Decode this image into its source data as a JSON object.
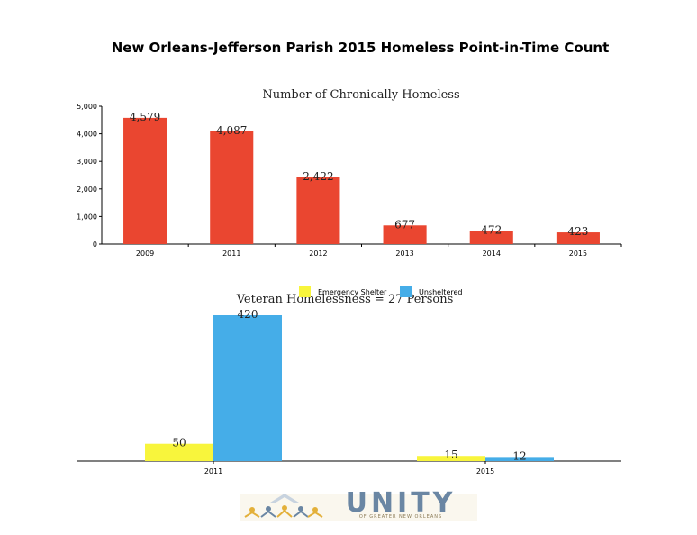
{
  "page": {
    "title": "New Orleans-Jefferson Parish 2015 Homeless Point-in-Time Count"
  },
  "colors": {
    "chronic_bar": "#ea4630",
    "emergency_shelter": "#f8f53c",
    "unsheltered": "#45ade8",
    "axis": "#000000"
  },
  "logo": {
    "word": "UNITY",
    "tagline": "OF GREATER NEW ORLEANS"
  },
  "chart_data": [
    {
      "type": "bar",
      "title": "Number of Chronically Homeless",
      "categories": [
        "2009",
        "2011",
        "2012",
        "2013",
        "2014",
        "2015"
      ],
      "values": [
        4579,
        4087,
        2422,
        677,
        472,
        423
      ],
      "value_labels": [
        "4,579",
        "4,087",
        "2,422",
        "677",
        "472",
        "423"
      ],
      "yticks": [
        "0",
        "1,000",
        "2,000",
        "3,000",
        "4,000",
        "5,000"
      ],
      "ylim": [
        0,
        5000
      ],
      "xlabel": "",
      "ylabel": "",
      "grid": false,
      "legend": null
    },
    {
      "type": "bar",
      "title": "Veteran Homelessness = 27 Persons",
      "categories": [
        "2011",
        "2015"
      ],
      "series": [
        {
          "name": "Emergency Shelter",
          "values": [
            50,
            15
          ]
        },
        {
          "name": "Unsheltered",
          "values": [
            420,
            12
          ]
        }
      ],
      "ylim": [
        0,
        420
      ],
      "xlabel": "",
      "ylabel": "",
      "grid": false,
      "legend": "top-center"
    }
  ]
}
